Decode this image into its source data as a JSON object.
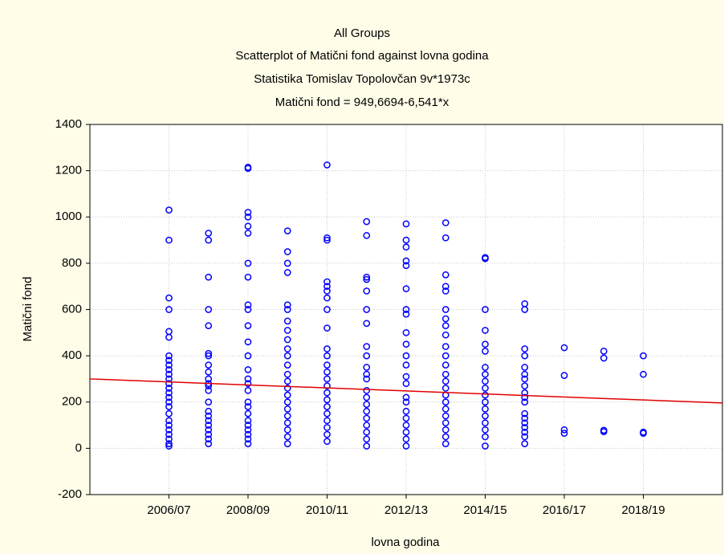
{
  "chart_data": {
    "type": "scatter",
    "title": "All Groups",
    "subtitle": "Scatterplot of Matični fond against lovna godina",
    "annotations": [
      "Statistika Tomislav Topolovčan 9v*1973c",
      "Matični fond = 949,6694-6,541*x"
    ],
    "xlabel": "lovna godina",
    "ylabel": "Matični fond",
    "color": "#0000ff",
    "groups": [
      {
        "x": 1,
        "values": [
          1030,
          900,
          650,
          600,
          505,
          480,
          400,
          380,
          360,
          340,
          320,
          300,
          280,
          260,
          240,
          220,
          200,
          180,
          150,
          120,
          100,
          80,
          60,
          40,
          20,
          10
        ]
      },
      {
        "x": 2,
        "values": [
          930,
          900,
          740,
          600,
          530,
          410,
          400,
          360,
          330,
          300,
          280,
          270,
          250,
          200,
          160,
          140,
          120,
          100,
          80,
          60,
          40,
          20
        ]
      },
      {
        "x": 3,
        "values": [
          1215,
          1210,
          1020,
          1000,
          960,
          930,
          800,
          740,
          620,
          600,
          530,
          460,
          400,
          340,
          300,
          280,
          250,
          200,
          180,
          150,
          120,
          100,
          80,
          60,
          40,
          20
        ]
      },
      {
        "x": 4,
        "values": [
          940,
          850,
          800,
          760,
          620,
          600,
          550,
          510,
          470,
          430,
          400,
          360,
          320,
          290,
          260,
          230,
          200,
          170,
          140,
          110,
          80,
          50,
          20
        ]
      },
      {
        "x": 5,
        "values": [
          1225,
          910,
          900,
          720,
          700,
          680,
          650,
          600,
          520,
          430,
          400,
          360,
          330,
          300,
          270,
          240,
          210,
          180,
          150,
          120,
          90,
          60,
          30
        ]
      },
      {
        "x": 6,
        "values": [
          980,
          920,
          740,
          730,
          680,
          600,
          540,
          440,
          400,
          350,
          320,
          300,
          250,
          220,
          190,
          160,
          130,
          100,
          70,
          40,
          10
        ]
      },
      {
        "x": 7,
        "values": [
          970,
          900,
          870,
          810,
          790,
          690,
          600,
          580,
          500,
          450,
          400,
          360,
          310,
          280,
          220,
          200,
          160,
          130,
          100,
          70,
          40,
          10
        ]
      },
      {
        "x": 8,
        "values": [
          975,
          910,
          750,
          700,
          680,
          600,
          560,
          530,
          490,
          440,
          400,
          360,
          320,
          290,
          260,
          230,
          200,
          170,
          140,
          110,
          80,
          50,
          20
        ]
      },
      {
        "x": 9,
        "values": [
          825,
          820,
          600,
          510,
          450,
          420,
          350,
          320,
          290,
          260,
          230,
          200,
          170,
          140,
          110,
          80,
          50,
          10
        ]
      },
      {
        "x": 10,
        "values": [
          625,
          600,
          430,
          400,
          350,
          320,
          300,
          270,
          240,
          220,
          200,
          150,
          130,
          110,
          90,
          70,
          50,
          20
        ]
      },
      {
        "x": 11,
        "values": [
          435,
          315,
          80,
          65
        ]
      },
      {
        "x": 12,
        "values": [
          420,
          390,
          78,
          72
        ]
      },
      {
        "x": 13,
        "values": [
          400,
          320,
          70,
          65
        ]
      }
    ],
    "fit": {
      "color": "#e00000",
      "x": [
        -1,
        15
      ],
      "values": [
        300,
        196
      ]
    },
    "xlim": [
      -1,
      15
    ],
    "xticks": [
      {
        "value": 1,
        "label": "2006/07"
      },
      {
        "value": 3,
        "label": "2008/09"
      },
      {
        "value": 5,
        "label": "2010/11"
      },
      {
        "value": 7,
        "label": "2012/13"
      },
      {
        "value": 9,
        "label": "2014/15"
      },
      {
        "value": 11,
        "label": "2016/17"
      },
      {
        "value": 13,
        "label": "2018/19"
      }
    ],
    "ylim": [
      -200,
      1400
    ],
    "yticks": [
      -200,
      0,
      200,
      400,
      600,
      800,
      1000,
      1200,
      1400
    ],
    "grid": true
  }
}
